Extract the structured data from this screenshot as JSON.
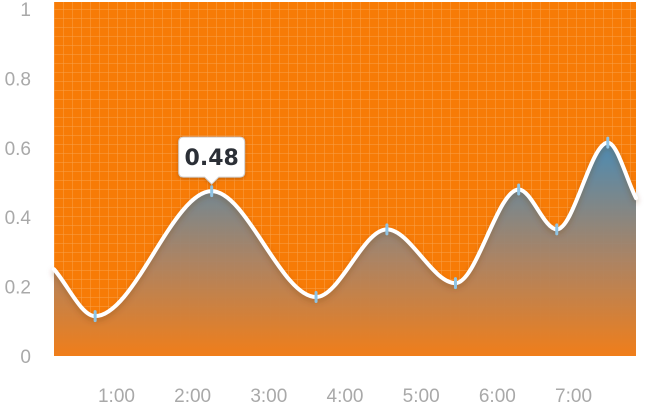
{
  "chart_data": {
    "type": "area",
    "x": [
      0.18,
      0.72,
      2.25,
      3.62,
      4.55,
      5.45,
      6.28,
      6.78,
      7.45,
      7.82
    ],
    "y": [
      0.25,
      0.115,
      0.475,
      0.17,
      0.365,
      0.21,
      0.48,
      0.365,
      0.615,
      0.455
    ],
    "markers_x": [
      0.72,
      2.25,
      3.62,
      4.55,
      5.45,
      6.28,
      6.78,
      7.45
    ],
    "x_tick_labels": [
      "1:00",
      "2:00",
      "3:00",
      "4:00",
      "5:00",
      "6:00",
      "7:00"
    ],
    "x_tick_values": [
      1,
      2,
      3,
      4,
      5,
      6,
      7
    ],
    "y_tick_labels": [
      "0",
      "0.2",
      "0.4",
      "0.6",
      "0.8",
      "1"
    ],
    "y_tick_values": [
      0,
      0.2,
      0.4,
      0.6,
      0.8,
      1
    ],
    "xlim": [
      0.18,
      7.82
    ],
    "ylim": [
      0,
      1
    ],
    "grid": true,
    "tooltip": {
      "x": 2.25,
      "label": "0.48"
    },
    "colors": {
      "background": "#f77b06",
      "grid_line": "#f9a24a",
      "line": "#ffffff",
      "marker": "#8fc4e4",
      "area_top": "#4a8bb4",
      "area_bottom": "#f07e1a",
      "axis_text": "#a9a9a9"
    }
  }
}
